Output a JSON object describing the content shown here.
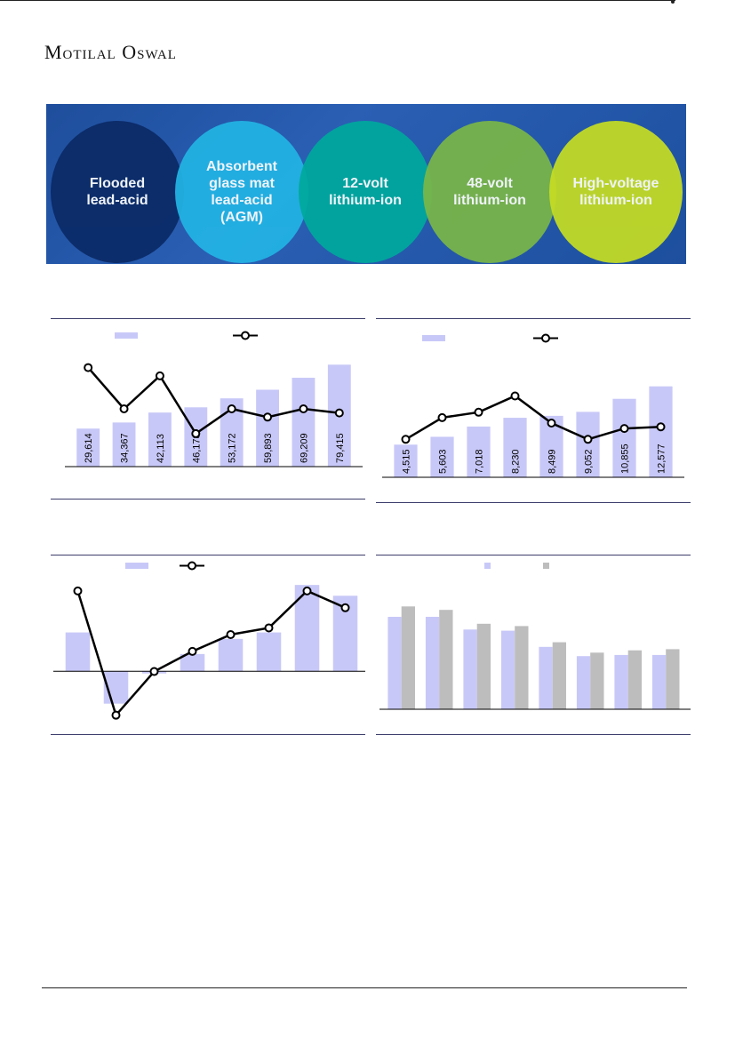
{
  "header": {
    "brand": "Motilal Oswal"
  },
  "banner": {
    "items": [
      {
        "label": "Flooded\nlead-acid",
        "color": "#0b2a66"
      },
      {
        "label": "Absorbent\nglass mat\nlead-acid\n(AGM)",
        "color": "#22b4e4"
      },
      {
        "label": "12-volt\nlithium-ion",
        "color": "#00a99d"
      },
      {
        "label": "48-volt\nlithium-ion",
        "color": "#7ab648"
      },
      {
        "label": "High-voltage\nlithium-ion",
        "color": "#c5dd23"
      }
    ]
  },
  "colors": {
    "bar": "#c8c8f8",
    "bar2": "#bdbdbd",
    "line": "#000000",
    "rule": "#3b3b6b"
  },
  "chart_data": [
    {
      "type": "bar",
      "legend_markers": [
        "bar",
        "line"
      ],
      "values": [
        29614,
        34367,
        42113,
        46178,
        53172,
        59893,
        69209,
        79415
      ],
      "labels": [
        "29,614",
        "34,367",
        "42,113",
        "46,178",
        "53,172",
        "59,893",
        "69,209",
        "79,415"
      ],
      "line_values": [
        16,
        11,
        15,
        8,
        11,
        10,
        11,
        10.5
      ],
      "ylim": [
        0,
        90000
      ],
      "line_ylim": [
        4,
        18
      ]
    },
    {
      "type": "bar",
      "legend_markers": [
        "bar",
        "line"
      ],
      "values": [
        4515,
        5603,
        7018,
        8230,
        8499,
        9052,
        10855,
        12577
      ],
      "labels": [
        "4,515",
        "5,603",
        "7,018",
        "8,230",
        "8,499",
        "9,052",
        "10,855",
        "12,577"
      ],
      "line_values": [
        7,
        11,
        12,
        15,
        10,
        7,
        9,
        9.3
      ],
      "ylim": [
        0,
        15000
      ],
      "line_ylim": [
        0,
        20
      ]
    },
    {
      "type": "bar",
      "legend_markers": [
        "bar",
        "line"
      ],
      "values": [
        18,
        -15,
        -1,
        8,
        15,
        18,
        40,
        35
      ],
      "line_values": [
        30,
        -7,
        6,
        12,
        17,
        19,
        30,
        25
      ],
      "ylim": [
        -25,
        45
      ],
      "line_ylim": [
        -10,
        35
      ]
    },
    {
      "type": "bar",
      "legend_markers": [
        "bar",
        "bar"
      ],
      "series": [
        {
          "values": [
            80,
            80,
            69,
            68,
            54,
            46,
            47,
            47
          ]
        },
        {
          "values": [
            89,
            86,
            74,
            72,
            58,
            49,
            51,
            52
          ]
        }
      ],
      "ylim": [
        0,
        100
      ]
    }
  ]
}
